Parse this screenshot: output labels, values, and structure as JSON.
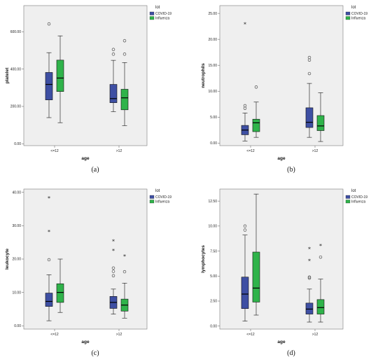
{
  "chart_data": [
    {
      "type": "boxplot",
      "panel_label": "(a)",
      "xlabel": "age",
      "ylabel": "platelet",
      "ylim": [
        -10,
        740
      ],
      "yticks": [
        0,
        200,
        400,
        600
      ],
      "ytick_labels": [
        "0.00",
        "200.00",
        "400.00",
        "600.00"
      ],
      "legend": {
        "title": "lot",
        "position": "top-right"
      },
      "categories": [
        "<=12",
        ">12"
      ],
      "series": [
        {
          "name": "COVID-19",
          "color": "#3e4fa3",
          "boxes": [
            {
              "min": 140,
              "q1": 235,
              "median": 318,
              "q3": 382,
              "max": 488,
              "outliers": [
                {
                  "value": 642,
                  "marker": "circle"
                }
              ]
            },
            {
              "min": 172,
              "q1": 220,
              "median": 242,
              "q3": 318,
              "max": 447,
              "outliers": [
                {
                  "value": 505,
                  "marker": "circle"
                },
                {
                  "value": 480,
                  "marker": "circle"
                }
              ]
            }
          ]
        },
        {
          "name": "Influenza",
          "color": "#2fb34a",
          "boxes": [
            {
              "min": 113,
              "q1": 280,
              "median": 352,
              "q3": 448,
              "max": 578,
              "outliers": []
            },
            {
              "min": 97,
              "q1": 182,
              "median": 246,
              "q3": 292,
              "max": 435,
              "outliers": [
                {
                  "value": 552,
                  "marker": "circle"
                },
                {
                  "value": 480,
                  "marker": "circle"
                }
              ]
            }
          ]
        }
      ]
    },
    {
      "type": "boxplot",
      "panel_label": "(b)",
      "xlabel": "age",
      "ylabel": "neutrophils",
      "ylim": [
        -0.5,
        26.5
      ],
      "yticks": [
        0,
        5,
        10,
        15,
        20,
        25
      ],
      "ytick_labels": [
        "0.00",
        "5.00",
        "10.00",
        "15.00",
        "20.00",
        "25.00"
      ],
      "legend": {
        "title": "lot",
        "position": "top-right"
      },
      "categories": [
        "<=12",
        ">12"
      ],
      "series": [
        {
          "name": "COVID-19",
          "color": "#3e4fa3",
          "boxes": [
            {
              "min": 0.4,
              "q1": 1.6,
              "median": 2.5,
              "q3": 3.4,
              "max": 5.8,
              "outliers": [
                {
                  "value": 22.9,
                  "marker": "star"
                },
                {
                  "value": 7.2,
                  "marker": "circle"
                },
                {
                  "value": 6.7,
                  "marker": "circle"
                }
              ]
            },
            {
              "min": 1.1,
              "q1": 3.0,
              "median": 4.0,
              "q3": 6.8,
              "max": 11.5,
              "outliers": [
                {
                  "value": 16.5,
                  "marker": "circle"
                },
                {
                  "value": 16.0,
                  "marker": "circle"
                },
                {
                  "value": 13.4,
                  "marker": "circle"
                }
              ]
            }
          ]
        },
        {
          "name": "Influenza",
          "color": "#2fb34a",
          "boxes": [
            {
              "min": 1.1,
              "q1": 2.2,
              "median": 3.9,
              "q3": 4.6,
              "max": 7.9,
              "outliers": [
                {
                  "value": 10.8,
                  "marker": "circle"
                }
              ]
            },
            {
              "min": 0.3,
              "q1": 2.4,
              "median": 3.3,
              "q3": 5.3,
              "max": 9.7,
              "outliers": []
            }
          ]
        }
      ]
    },
    {
      "type": "boxplot",
      "panel_label": "(c)",
      "xlabel": "age",
      "ylabel": "leukocyte",
      "ylim": [
        -1,
        41
      ],
      "yticks": [
        0,
        10,
        20,
        30,
        40
      ],
      "ytick_labels": [
        "0.00",
        "10.00",
        "20.00",
        "30.00",
        "40.00"
      ],
      "legend": {
        "title": "lot",
        "position": "top-right"
      },
      "categories": [
        "<=12",
        ">12"
      ],
      "series": [
        {
          "name": "COVID-19",
          "color": "#3e4fa3",
          "boxes": [
            {
              "min": 1.5,
              "q1": 5.8,
              "median": 7.3,
              "q3": 9.8,
              "max": 15.3,
              "outliers": [
                {
                  "value": 38.2,
                  "marker": "star"
                },
                {
                  "value": 28.2,
                  "marker": "star"
                },
                {
                  "value": 19.8,
                  "marker": "circle"
                }
              ]
            },
            {
              "min": 3.5,
              "q1": 5.2,
              "median": 7.0,
              "q3": 8.8,
              "max": 11.0,
              "outliers": [
                {
                  "value": 25.3,
                  "marker": "star"
                },
                {
                  "value": 22.5,
                  "marker": "star"
                },
                {
                  "value": 17.3,
                  "marker": "circle"
                },
                {
                  "value": 16.3,
                  "marker": "circle"
                },
                {
                  "value": 15.0,
                  "marker": "circle"
                }
              ]
            }
          ]
        },
        {
          "name": "Influenza",
          "color": "#2fb34a",
          "boxes": [
            {
              "min": 4.0,
              "q1": 7.0,
              "median": 10.0,
              "q3": 12.6,
              "max": 20.0,
              "outliers": []
            },
            {
              "min": 2.3,
              "q1": 4.4,
              "median": 6.2,
              "q3": 8.0,
              "max": 12.8,
              "outliers": [
                {
                  "value": 20.8,
                  "marker": "star"
                },
                {
                  "value": 16.2,
                  "marker": "circle"
                }
              ]
            }
          ]
        }
      ]
    },
    {
      "type": "boxplot",
      "panel_label": "(d)",
      "xlabel": "age",
      "ylabel": "lymphocytes",
      "ylim": [
        -0.3,
        13.7
      ],
      "yticks": [
        0,
        2.5,
        5,
        7.5,
        10,
        12.5
      ],
      "ytick_labels": [
        "0.00",
        "2.50",
        "5.00",
        "7.50",
        "10.00",
        "12.50"
      ],
      "legend": {
        "title": "lot",
        "position": "top-right"
      },
      "categories": [
        "<=12",
        ">12"
      ],
      "series": [
        {
          "name": "COVID-19",
          "color": "#3e4fa3",
          "boxes": [
            {
              "min": 0.5,
              "q1": 1.75,
              "median": 3.2,
              "q3": 4.9,
              "max": 9.1,
              "outliers": [
                {
                  "value": 10.0,
                  "marker": "circle"
                },
                {
                  "value": 9.6,
                  "marker": "circle"
                }
              ]
            },
            {
              "min": 0.4,
              "q1": 1.2,
              "median": 1.7,
              "q3": 2.3,
              "max": 3.7,
              "outliers": [
                {
                  "value": 7.7,
                  "marker": "star"
                },
                {
                  "value": 6.5,
                  "marker": "star"
                },
                {
                  "value": 4.9,
                  "marker": "circle"
                },
                {
                  "value": 4.8,
                  "marker": "circle"
                }
              ]
            }
          ]
        },
        {
          "name": "Influenza",
          "color": "#2fb34a",
          "boxes": [
            {
              "min": 1.1,
              "q1": 2.4,
              "median": 3.8,
              "q3": 7.4,
              "max": 13.2,
              "outliers": []
            },
            {
              "min": 0.4,
              "q1": 1.2,
              "median": 1.85,
              "q3": 2.65,
              "max": 4.7,
              "outliers": [
                {
                  "value": 8.0,
                  "marker": "star"
                },
                {
                  "value": 6.9,
                  "marker": "circle"
                }
              ]
            }
          ]
        }
      ]
    }
  ]
}
